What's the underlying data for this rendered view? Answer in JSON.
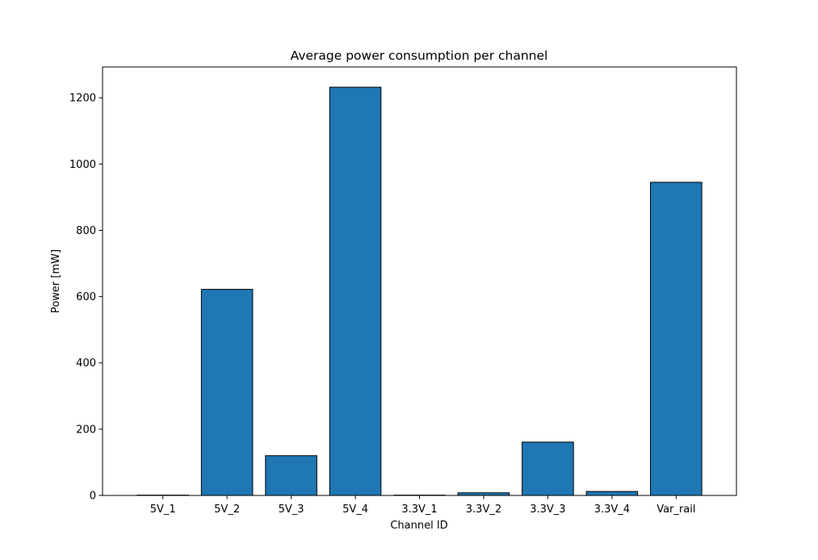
{
  "chart_data": {
    "type": "bar",
    "title": "Average power consumption per channel",
    "xlabel": "Channel ID",
    "ylabel": "Power [mW]",
    "categories": [
      "5V_1",
      "5V_2",
      "5V_3",
      "5V_4",
      "3.3V_1",
      "3.3V_2",
      "3.3V_3",
      "3.3V_4",
      "Var_rail"
    ],
    "values": [
      1,
      622,
      120,
      1232,
      1,
      8,
      161,
      12,
      945
    ],
    "ylim": [
      0,
      1293
    ],
    "yticks": [
      0,
      200,
      400,
      600,
      800,
      1000,
      1200
    ],
    "ytick_labels": [
      "0",
      "200",
      "400",
      "600",
      "800",
      "1000",
      "1200"
    ],
    "grid": false,
    "legend": "none",
    "colors": {
      "bar_fill": "#1f77b4",
      "bar_edge": "#000000",
      "axis": "#000000"
    }
  }
}
